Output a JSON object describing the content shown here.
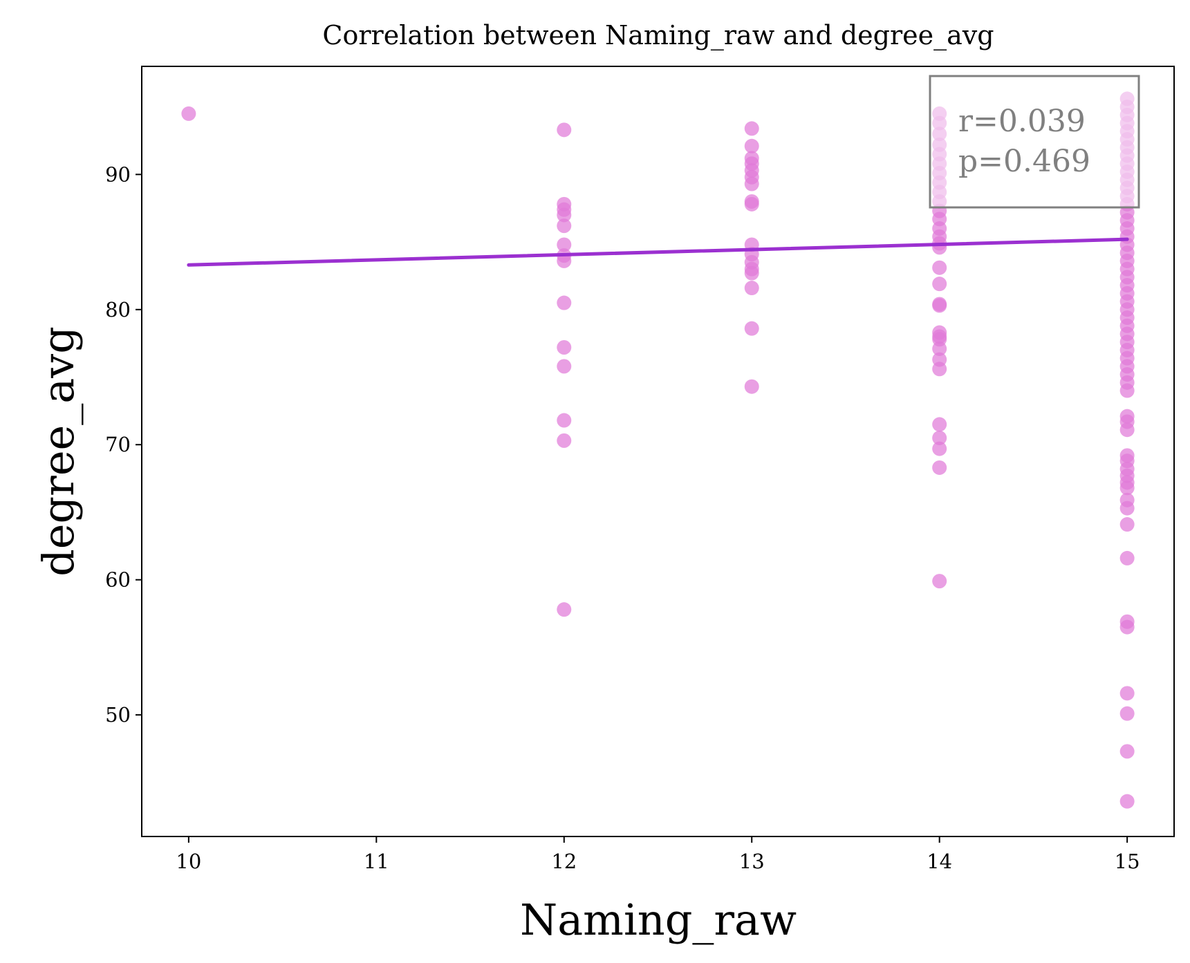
{
  "chart_data": {
    "type": "scatter",
    "title": "Correlation between Naming_raw and degree_avg",
    "xlabel": "Naming_raw",
    "ylabel": "degree_avg",
    "xlim": [
      9.75,
      15.25
    ],
    "ylim": [
      41,
      98
    ],
    "xticks": [
      10,
      11,
      12,
      13,
      14,
      15
    ],
    "yticks": [
      50,
      60,
      70,
      80,
      90
    ],
    "grid": false,
    "point_color": "#e07ad8",
    "line_color": "#9b30d0",
    "stats": {
      "r_text": "r=0.039",
      "p_text": "p=0.469"
    },
    "regression": {
      "x": [
        10,
        15
      ],
      "y": [
        83.3,
        85.2
      ]
    },
    "points": [
      {
        "x": 10,
        "y": 94.5
      },
      {
        "x": 12,
        "y": 93.3
      },
      {
        "x": 12,
        "y": 87.8
      },
      {
        "x": 12,
        "y": 87.4
      },
      {
        "x": 12,
        "y": 87.0
      },
      {
        "x": 12,
        "y": 86.2
      },
      {
        "x": 12,
        "y": 84.8
      },
      {
        "x": 12,
        "y": 84.0
      },
      {
        "x": 12,
        "y": 83.6
      },
      {
        "x": 12,
        "y": 80.5
      },
      {
        "x": 12,
        "y": 77.2
      },
      {
        "x": 12,
        "y": 75.8
      },
      {
        "x": 12,
        "y": 71.8
      },
      {
        "x": 12,
        "y": 70.3
      },
      {
        "x": 12,
        "y": 57.8
      },
      {
        "x": 13,
        "y": 93.4
      },
      {
        "x": 13,
        "y": 92.1
      },
      {
        "x": 13,
        "y": 91.2
      },
      {
        "x": 13,
        "y": 90.8
      },
      {
        "x": 13,
        "y": 90.3
      },
      {
        "x": 13,
        "y": 89.8
      },
      {
        "x": 13,
        "y": 89.3
      },
      {
        "x": 13,
        "y": 88.0
      },
      {
        "x": 13,
        "y": 87.8
      },
      {
        "x": 13,
        "y": 84.8
      },
      {
        "x": 13,
        "y": 84.1
      },
      {
        "x": 13,
        "y": 83.5
      },
      {
        "x": 13,
        "y": 83.0
      },
      {
        "x": 13,
        "y": 82.7
      },
      {
        "x": 13,
        "y": 81.6
      },
      {
        "x": 13,
        "y": 78.6
      },
      {
        "x": 13,
        "y": 74.3
      },
      {
        "x": 14,
        "y": 94.5
      },
      {
        "x": 14,
        "y": 93.8
      },
      {
        "x": 14,
        "y": 93.0
      },
      {
        "x": 14,
        "y": 92.2
      },
      {
        "x": 14,
        "y": 91.5
      },
      {
        "x": 14,
        "y": 90.8
      },
      {
        "x": 14,
        "y": 90.1
      },
      {
        "x": 14,
        "y": 89.4
      },
      {
        "x": 14,
        "y": 88.7
      },
      {
        "x": 14,
        "y": 88.0
      },
      {
        "x": 14,
        "y": 87.3
      },
      {
        "x": 14,
        "y": 86.7
      },
      {
        "x": 14,
        "y": 86.0
      },
      {
        "x": 14,
        "y": 85.4
      },
      {
        "x": 14,
        "y": 84.9
      },
      {
        "x": 14,
        "y": 84.6
      },
      {
        "x": 14,
        "y": 83.1
      },
      {
        "x": 14,
        "y": 81.9
      },
      {
        "x": 14,
        "y": 80.4
      },
      {
        "x": 14,
        "y": 80.3
      },
      {
        "x": 14,
        "y": 78.3
      },
      {
        "x": 14,
        "y": 78.0
      },
      {
        "x": 14,
        "y": 77.8
      },
      {
        "x": 14,
        "y": 77.1
      },
      {
        "x": 14,
        "y": 76.3
      },
      {
        "x": 14,
        "y": 75.6
      },
      {
        "x": 14,
        "y": 71.5
      },
      {
        "x": 14,
        "y": 70.5
      },
      {
        "x": 14,
        "y": 69.7
      },
      {
        "x": 14,
        "y": 68.3
      },
      {
        "x": 14,
        "y": 59.9
      },
      {
        "x": 15,
        "y": 95.6
      },
      {
        "x": 15,
        "y": 95.0
      },
      {
        "x": 15,
        "y": 94.4
      },
      {
        "x": 15,
        "y": 93.8
      },
      {
        "x": 15,
        "y": 93.2
      },
      {
        "x": 15,
        "y": 92.6
      },
      {
        "x": 15,
        "y": 92.0
      },
      {
        "x": 15,
        "y": 91.4
      },
      {
        "x": 15,
        "y": 90.8
      },
      {
        "x": 15,
        "y": 90.2
      },
      {
        "x": 15,
        "y": 89.6
      },
      {
        "x": 15,
        "y": 89.0
      },
      {
        "x": 15,
        "y": 88.4
      },
      {
        "x": 15,
        "y": 87.8
      },
      {
        "x": 15,
        "y": 87.2
      },
      {
        "x": 15,
        "y": 86.6
      },
      {
        "x": 15,
        "y": 86.0
      },
      {
        "x": 15,
        "y": 85.4
      },
      {
        "x": 15,
        "y": 84.8
      },
      {
        "x": 15,
        "y": 84.2
      },
      {
        "x": 15,
        "y": 83.6
      },
      {
        "x": 15,
        "y": 83.0
      },
      {
        "x": 15,
        "y": 82.4
      },
      {
        "x": 15,
        "y": 81.8
      },
      {
        "x": 15,
        "y": 81.2
      },
      {
        "x": 15,
        "y": 80.6
      },
      {
        "x": 15,
        "y": 80.0
      },
      {
        "x": 15,
        "y": 79.4
      },
      {
        "x": 15,
        "y": 78.8
      },
      {
        "x": 15,
        "y": 78.2
      },
      {
        "x": 15,
        "y": 77.6
      },
      {
        "x": 15,
        "y": 77.0
      },
      {
        "x": 15,
        "y": 76.4
      },
      {
        "x": 15,
        "y": 75.8
      },
      {
        "x": 15,
        "y": 75.2
      },
      {
        "x": 15,
        "y": 74.6
      },
      {
        "x": 15,
        "y": 74.0
      },
      {
        "x": 15,
        "y": 72.1
      },
      {
        "x": 15,
        "y": 71.7
      },
      {
        "x": 15,
        "y": 71.1
      },
      {
        "x": 15,
        "y": 69.2
      },
      {
        "x": 15,
        "y": 68.8
      },
      {
        "x": 15,
        "y": 68.2
      },
      {
        "x": 15,
        "y": 67.7
      },
      {
        "x": 15,
        "y": 67.2
      },
      {
        "x": 15,
        "y": 66.8
      },
      {
        "x": 15,
        "y": 65.9
      },
      {
        "x": 15,
        "y": 65.3
      },
      {
        "x": 15,
        "y": 64.1
      },
      {
        "x": 15,
        "y": 61.6
      },
      {
        "x": 15,
        "y": 56.9
      },
      {
        "x": 15,
        "y": 56.5
      },
      {
        "x": 15,
        "y": 51.6
      },
      {
        "x": 15,
        "y": 50.1
      },
      {
        "x": 15,
        "y": 47.3
      },
      {
        "x": 15,
        "y": 43.6
      }
    ]
  }
}
